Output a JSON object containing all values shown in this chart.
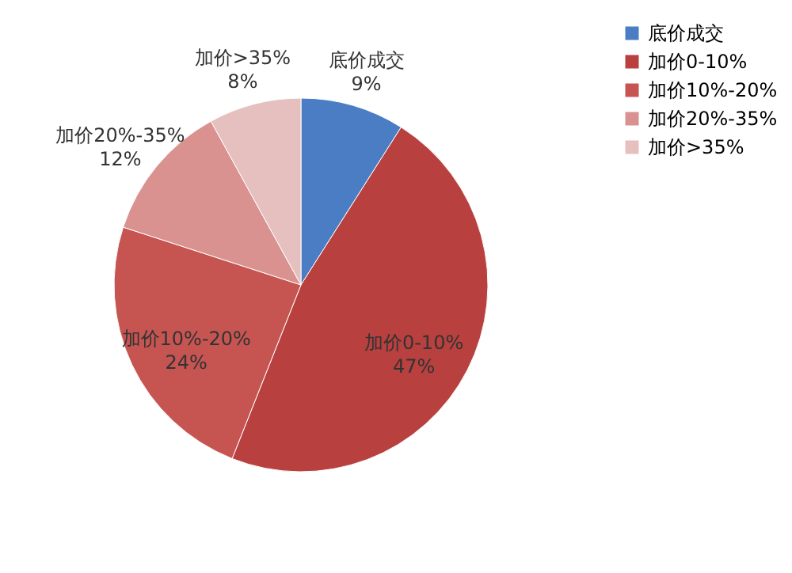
{
  "chart_data": {
    "type": "pie",
    "categories": [
      "底价成交",
      "加价0-10%",
      "加价10%-20%",
      "加价20%-35%",
      "加价>35%"
    ],
    "values": [
      9,
      47,
      24,
      12,
      8
    ],
    "value_labels": [
      "9%",
      "47%",
      "24%",
      "12%",
      "8%"
    ],
    "colors": [
      "#4a7dc4",
      "#b8403f",
      "#c65552",
      "#d9928f",
      "#e6bfbf"
    ],
    "legend": "right"
  }
}
